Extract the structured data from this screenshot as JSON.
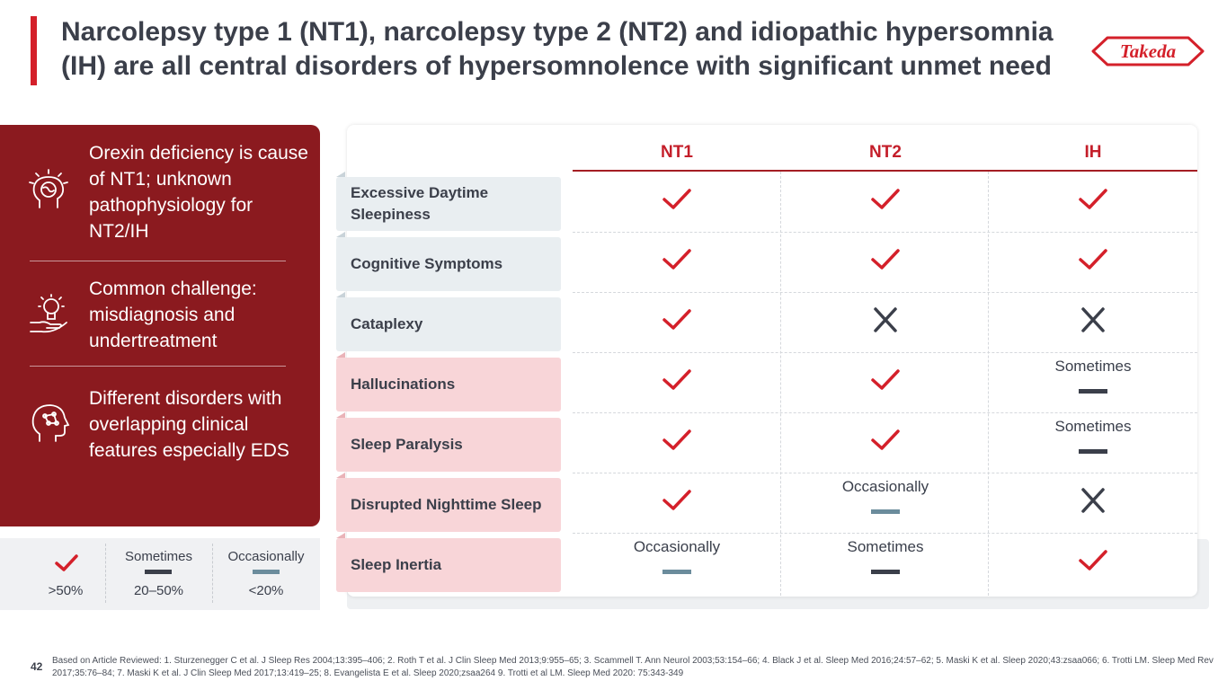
{
  "title": "Narcolepsy type 1 (NT1), narcolepsy type 2 (NT2) and idiopathic hypersomnia (IH) are all central disorders of hypersomnolence with significant unmet need",
  "logo_text": "Takeda",
  "brand_color": "#d4202a",
  "panel_color": "#8b1a1f",
  "left_panel": {
    "items": [
      {
        "icon": "brain-ideas-icon",
        "text": "Orexin deficiency is cause of NT1; unknown pathophysiology for NT2/IH"
      },
      {
        "icon": "lightbulb-hand-icon",
        "text": "Common challenge: misdiagnosis and undertreatment"
      },
      {
        "icon": "head-network-icon",
        "text": "Different disorders with overlapping clinical features especially EDS"
      }
    ]
  },
  "legend": {
    "check_label": ">50%",
    "sometimes_title": "Sometimes",
    "sometimes_label": "20–50%",
    "occasionally_title": "Occasionally",
    "occasionally_label": "<20%"
  },
  "table": {
    "columns": [
      "NT1",
      "NT2",
      "IH"
    ],
    "rows": [
      {
        "label": "Excessive Daytime Sleepiness",
        "tone": "blue",
        "cells": [
          {
            "mark": "check"
          },
          {
            "mark": "check"
          },
          {
            "mark": "check"
          }
        ]
      },
      {
        "label": "Cognitive Symptoms",
        "tone": "blue",
        "cells": [
          {
            "mark": "check"
          },
          {
            "mark": "check"
          },
          {
            "mark": "check"
          }
        ]
      },
      {
        "label": "Cataplexy",
        "tone": "blue",
        "cells": [
          {
            "mark": "check"
          },
          {
            "mark": "cross"
          },
          {
            "mark": "cross"
          }
        ]
      },
      {
        "label": "Hallucinations",
        "tone": "pink",
        "cells": [
          {
            "mark": "check"
          },
          {
            "mark": "check"
          },
          {
            "mark": "sometimes",
            "text": "Sometimes"
          }
        ]
      },
      {
        "label": "Sleep Paralysis",
        "tone": "pink",
        "cells": [
          {
            "mark": "check"
          },
          {
            "mark": "check"
          },
          {
            "mark": "sometimes",
            "text": "Sometimes"
          }
        ]
      },
      {
        "label": "Disrupted Nighttime Sleep",
        "tone": "pink",
        "cells": [
          {
            "mark": "check"
          },
          {
            "mark": "occasionally",
            "text": "Occasionally"
          },
          {
            "mark": "cross"
          }
        ]
      },
      {
        "label": "Sleep Inertia",
        "tone": "pink",
        "cells": [
          {
            "mark": "occasionally",
            "text": "Occasionally"
          },
          {
            "mark": "sometimes",
            "text": "Sometimes"
          },
          {
            "mark": "check"
          }
        ]
      }
    ]
  },
  "footer": {
    "page_number": "42",
    "footnote": "Based on Article Reviewed: 1. Sturzenegger C et al. J Sleep Res 2004;13:395–406; 2. Roth T et al. J Clin Sleep Med 2013;9:955–65; 3. Scammell T. Ann Neurol 2003;53:154–66; 4. Black J et al. Sleep Med 2016;24:57–62; 5. Maski K et al. Sleep 2020;43:zsaa066; 6. Trotti LM. Sleep Med Rev 2017;35:76–84; 7. Maski K et al. J Clin Sleep Med 2017;13:419–25; 8. Evangelista E et al. Sleep 2020;zsaa264 9. Trotti et al LM. Sleep Med 2020: 75:343-349"
  }
}
